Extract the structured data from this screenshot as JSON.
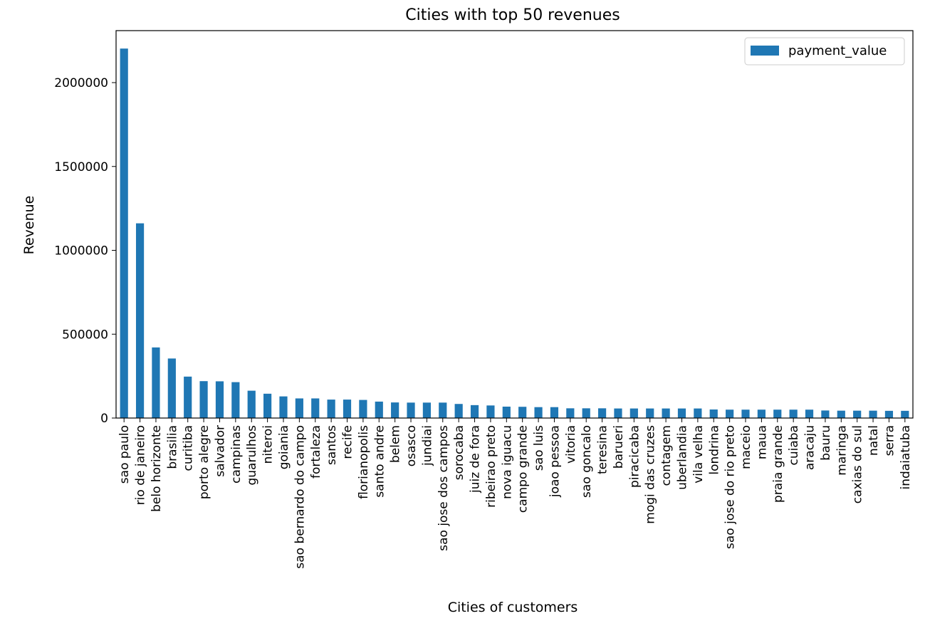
{
  "chart_data": {
    "type": "bar",
    "title": "Cities with top 50 revenues",
    "xlabel": "Cities of customers",
    "ylabel": "Revenue",
    "ylim": [
      0,
      2310000
    ],
    "yticks": [
      0,
      500000,
      1000000,
      1500000,
      2000000
    ],
    "ytick_labels": [
      "0",
      "500000",
      "1000000",
      "1500000",
      "2000000"
    ],
    "grid": false,
    "legend": {
      "placement": "top-right",
      "entries": [
        "payment_value"
      ]
    },
    "bar_color": "#1f77b4",
    "categories": [
      "sao paulo",
      "rio de janeiro",
      "belo horizonte",
      "brasilia",
      "curitiba",
      "porto alegre",
      "salvador",
      "campinas",
      "guarulhos",
      "niteroi",
      "goiania",
      "sao bernardo do campo",
      "fortaleza",
      "santos",
      "recife",
      "florianopolis",
      "santo andre",
      "belem",
      "osasco",
      "jundiai",
      "sao jose dos campos",
      "sorocaba",
      "juiz de fora",
      "ribeirao preto",
      "nova iguacu",
      "campo grande",
      "sao luis",
      "joao pessoa",
      "vitoria",
      "sao goncalo",
      "teresina",
      "barueri",
      "piracicaba",
      "mogi das cruzes",
      "contagem",
      "uberlandia",
      "vila velha",
      "londrina",
      "sao jose do rio preto",
      "maceio",
      "maua",
      "praia grande",
      "cuiaba",
      "aracaju",
      "bauru",
      "maringa",
      "caxias do sul",
      "natal",
      "serra",
      "indaiatuba"
    ],
    "series": [
      {
        "name": "payment_value",
        "values": [
          2203000,
          1161000,
          421000,
          355000,
          247000,
          220000,
          219000,
          214000,
          163000,
          145000,
          129000,
          117000,
          117000,
          110000,
          110000,
          108000,
          98000,
          93000,
          92000,
          92000,
          92000,
          84000,
          77000,
          75000,
          68000,
          67000,
          65000,
          65000,
          58000,
          58000,
          58000,
          57000,
          57000,
          57000,
          57000,
          57000,
          57000,
          51000,
          50000,
          50000,
          50000,
          50000,
          50000,
          50000,
          45000,
          44000,
          44000,
          44000,
          43000,
          43000
        ]
      }
    ]
  }
}
